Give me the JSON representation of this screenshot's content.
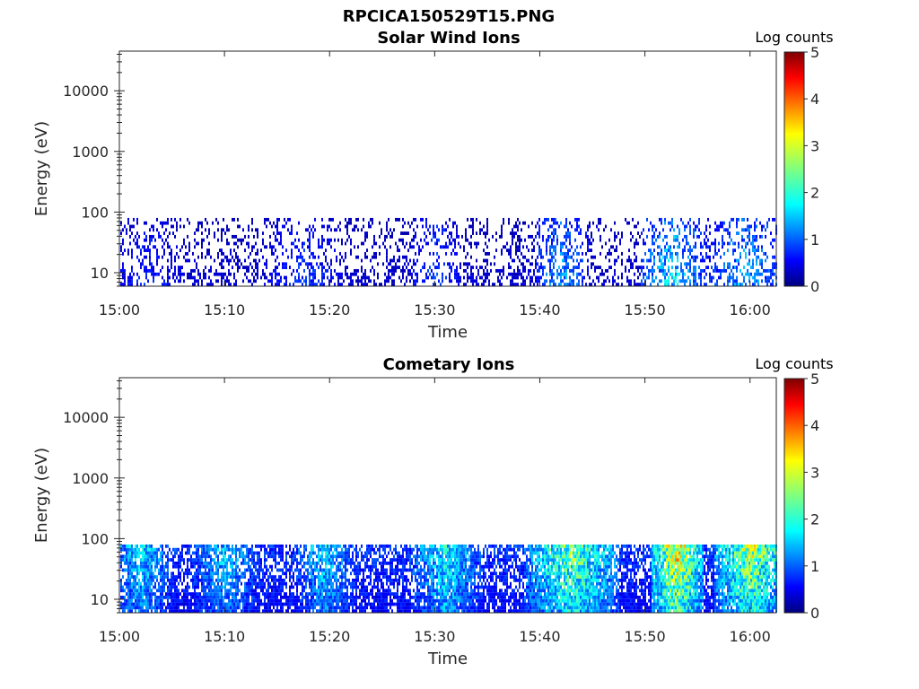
{
  "figure": {
    "title": "RPCICA150529T15.PNG"
  },
  "chart_data": [
    {
      "type": "heatmap",
      "title": "Solar Wind Ions",
      "xlabel": "Time",
      "ylabel": "Energy (eV)",
      "x_ticks": [
        "15:00",
        "15:10",
        "15:20",
        "15:30",
        "15:40",
        "15:50",
        "16:00"
      ],
      "x_tick_minutes": [
        0,
        10,
        20,
        30,
        40,
        50,
        60
      ],
      "xlim_minutes": [
        0,
        62.5
      ],
      "y_scale": "log",
      "y_ticks": [
        "10",
        "100",
        "1000",
        "10000"
      ],
      "y_tick_values": [
        10,
        100,
        1000,
        10000
      ],
      "ylim": [
        6,
        45000
      ],
      "data_energy_range": [
        6,
        80
      ],
      "colorbar": {
        "label": "Log counts",
        "ticks": [
          "0",
          "1",
          "2",
          "3",
          "4",
          "5"
        ],
        "range": [
          0,
          5
        ],
        "colormap": "jet"
      },
      "density": "sparse",
      "intensity_profile": [
        {
          "t": [
            0,
            5
          ],
          "level": 0.8
        },
        {
          "t": [
            15,
            20
          ],
          "level": 0.9
        },
        {
          "t": [
            29,
            31
          ],
          "level": 1.0
        },
        {
          "t": [
            41,
            43
          ],
          "level": 1.5
        },
        {
          "t": [
            51,
            54
          ],
          "level": 1.8
        },
        {
          "t": [
            57,
            62
          ],
          "level": 1.5
        }
      ]
    },
    {
      "type": "heatmap",
      "title": "Cometary Ions",
      "xlabel": "Time",
      "ylabel": "Energy (eV)",
      "x_ticks": [
        "15:00",
        "15:10",
        "15:20",
        "15:30",
        "15:40",
        "15:50",
        "16:00"
      ],
      "x_tick_minutes": [
        0,
        10,
        20,
        30,
        40,
        50,
        60
      ],
      "xlim_minutes": [
        0,
        62.5
      ],
      "y_scale": "log",
      "y_ticks": [
        "10",
        "100",
        "1000",
        "10000"
      ],
      "y_tick_values": [
        10,
        100,
        1000,
        10000
      ],
      "ylim": [
        6,
        45000
      ],
      "data_energy_range": [
        6,
        80
      ],
      "colorbar": {
        "label": "Log counts",
        "ticks": [
          "0",
          "1",
          "2",
          "3",
          "4",
          "5"
        ],
        "range": [
          0,
          5
        ],
        "colormap": "jet"
      },
      "density": "dense",
      "intensity_profile": [
        {
          "t": [
            0,
            4
          ],
          "level": 1.8
        },
        {
          "t": [
            8,
            12
          ],
          "level": 1.7
        },
        {
          "t": [
            18,
            21
          ],
          "level": 1.8
        },
        {
          "t": [
            29,
            33
          ],
          "level": 2.0
        },
        {
          "t": [
            40,
            46
          ],
          "level": 2.6
        },
        {
          "t": [
            52,
            54
          ],
          "level": 3.3
        },
        {
          "t": [
            58,
            62
          ],
          "level": 2.9
        }
      ]
    }
  ]
}
